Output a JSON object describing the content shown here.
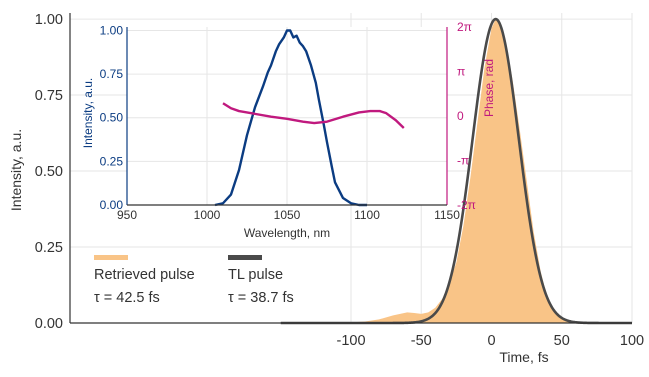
{
  "colors": {
    "retrieved_fill": "#F9C487",
    "tl_line": "#4A4A4A",
    "spectrum": "#0B3C82",
    "phase": "#C0197E",
    "grid": "#E6E6E6",
    "axis": "#333333"
  },
  "chart_data": [
    {
      "id": "main",
      "type": "area",
      "xlabel": "Time, fs",
      "ylabel": "Intensity, a.u.",
      "xlim": [
        -300,
        100
      ],
      "ylim": [
        0,
        1.02
      ],
      "x_ticks": [
        -100,
        -50,
        0,
        50,
        100
      ],
      "y_ticks": [
        {
          "value": 0,
          "label": "0.00"
        },
        {
          "value": 0.25,
          "label": "0.25"
        },
        {
          "value": 0.5,
          "label": "0.50"
        },
        {
          "value": 0.75,
          "label": "0.75"
        },
        {
          "value": 1,
          "label": "1.00"
        }
      ],
      "grid": true,
      "legend": {
        "placement": "bottom-left",
        "entries": [
          {
            "name": "Retrieved pulse",
            "detail": "τ = 42.5 fs"
          },
          {
            "name": "TL pulse",
            "detail": "τ = 38.7 fs"
          }
        ]
      },
      "series": [
        {
          "name": "Retrieved pulse",
          "style": "filled area",
          "x": [
            -120,
            -100,
            -90,
            -80,
            -70,
            -60,
            -55,
            -50,
            -45,
            -40,
            -35,
            -30,
            -25,
            -20,
            -15,
            -10,
            -5,
            0,
            3,
            5,
            10,
            15,
            20,
            25,
            30,
            35,
            40,
            45,
            50,
            60,
            70,
            80,
            100
          ],
          "y": [
            0.0,
            0.002,
            0.005,
            0.012,
            0.025,
            0.035,
            0.033,
            0.03,
            0.035,
            0.05,
            0.08,
            0.13,
            0.2,
            0.32,
            0.48,
            0.66,
            0.84,
            0.97,
            1.0,
            0.99,
            0.93,
            0.8,
            0.64,
            0.47,
            0.3,
            0.17,
            0.08,
            0.035,
            0.015,
            0.004,
            0.001,
            0.0,
            0.0
          ]
        },
        {
          "name": "TL pulse",
          "style": "line",
          "center": 3,
          "fwhm": 38.7
        }
      ]
    },
    {
      "id": "inset",
      "type": "line",
      "xlabel": "Wavelength, nm",
      "ylabel": "Intensity, a.u.",
      "y2label": "Phase, rad",
      "xlim": [
        950,
        1150
      ],
      "ylim": [
        0,
        1.02
      ],
      "y2lim": [
        -6.3,
        6.3
      ],
      "x_ticks": [
        950,
        1000,
        1050,
        1100,
        1150
      ],
      "y_ticks": [
        {
          "value": 0,
          "label": "0.00"
        },
        {
          "value": 0.25,
          "label": "0.25"
        },
        {
          "value": 0.5,
          "label": "0.50"
        },
        {
          "value": 0.75,
          "label": "0.75"
        },
        {
          "value": 1,
          "label": "1.00"
        }
      ],
      "y2_ticks": [
        {
          "value": -6.283,
          "label": "-2π"
        },
        {
          "value": -3.1416,
          "label": "-π"
        },
        {
          "value": 0,
          "label": "0"
        },
        {
          "value": 3.1416,
          "label": "π"
        },
        {
          "value": 6.283,
          "label": "2π"
        }
      ],
      "series": [
        {
          "name": "Spectrum",
          "axis": "left",
          "x": [
            1005,
            1010,
            1015,
            1020,
            1025,
            1030,
            1035,
            1038,
            1040,
            1043,
            1045,
            1048,
            1050,
            1052,
            1054,
            1056,
            1058,
            1060,
            1062,
            1065,
            1068,
            1070,
            1073,
            1075,
            1078,
            1080,
            1085,
            1090,
            1095,
            1100
          ],
          "y": [
            0.0,
            0.01,
            0.06,
            0.2,
            0.4,
            0.56,
            0.68,
            0.76,
            0.8,
            0.88,
            0.92,
            0.96,
            1.0,
            1.0,
            0.96,
            0.97,
            0.93,
            0.91,
            0.88,
            0.8,
            0.7,
            0.6,
            0.46,
            0.36,
            0.22,
            0.13,
            0.04,
            0.01,
            0.0,
            0.0
          ]
        },
        {
          "name": "Phase",
          "axis": "right",
          "x": [
            1010,
            1015,
            1020,
            1030,
            1040,
            1050,
            1060,
            1067,
            1075,
            1085,
            1095,
            1102,
            1108,
            1112,
            1118,
            1123
          ],
          "y": [
            0.9,
            0.55,
            0.35,
            0.15,
            -0.05,
            -0.2,
            -0.4,
            -0.5,
            -0.4,
            -0.05,
            0.25,
            0.35,
            0.35,
            0.2,
            -0.3,
            -0.85
          ]
        }
      ]
    }
  ]
}
